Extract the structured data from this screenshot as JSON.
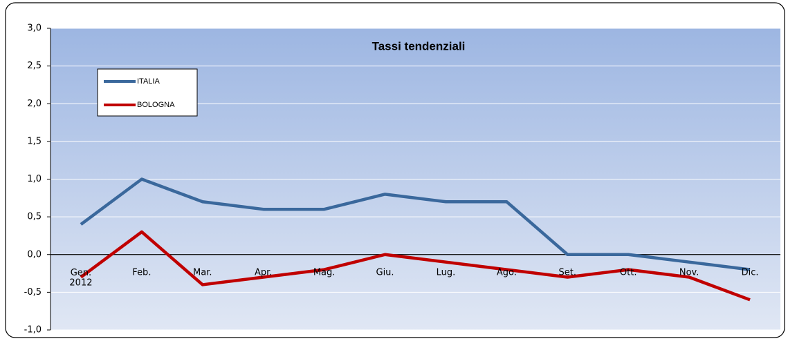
{
  "chart_data": {
    "type": "line",
    "title": "Tassi tendenziali",
    "categories": [
      "Gen.\n2012",
      "Feb.",
      "Mar.",
      "Apr.",
      "Mag.",
      "Giu.",
      "Lug.",
      "Ago.",
      "Set.",
      "Ott.",
      "Nov.",
      "Dic."
    ],
    "series": [
      {
        "name": "ITALIA",
        "color": "#3a689c",
        "values": [
          0.4,
          1.0,
          0.7,
          0.6,
          0.6,
          0.8,
          0.7,
          0.7,
          0.0,
          0.0,
          -0.1,
          -0.2
        ]
      },
      {
        "name": "BOLOGNA",
        "color": "#c00000",
        "values": [
          -0.3,
          0.3,
          -0.4,
          -0.3,
          -0.2,
          0.0,
          -0.1,
          -0.2,
          -0.3,
          -0.2,
          -0.3,
          -0.6
        ]
      }
    ],
    "ylim": [
      -1,
      3
    ],
    "yticks": [
      {
        "value": -1,
        "label": "-1,0"
      },
      {
        "value": -0.5,
        "label": "-0,5"
      },
      {
        "value": 0,
        "label": "0,0"
      },
      {
        "value": 0.5,
        "label": "0,5"
      },
      {
        "value": 1,
        "label": "1,0"
      },
      {
        "value": 1.5,
        "label": "1,5"
      },
      {
        "value": 2,
        "label": "2,0"
      },
      {
        "value": 2.5,
        "label": "2,5"
      },
      {
        "value": 3,
        "label": "3,0"
      }
    ],
    "grid": true,
    "legend": "upper left"
  }
}
